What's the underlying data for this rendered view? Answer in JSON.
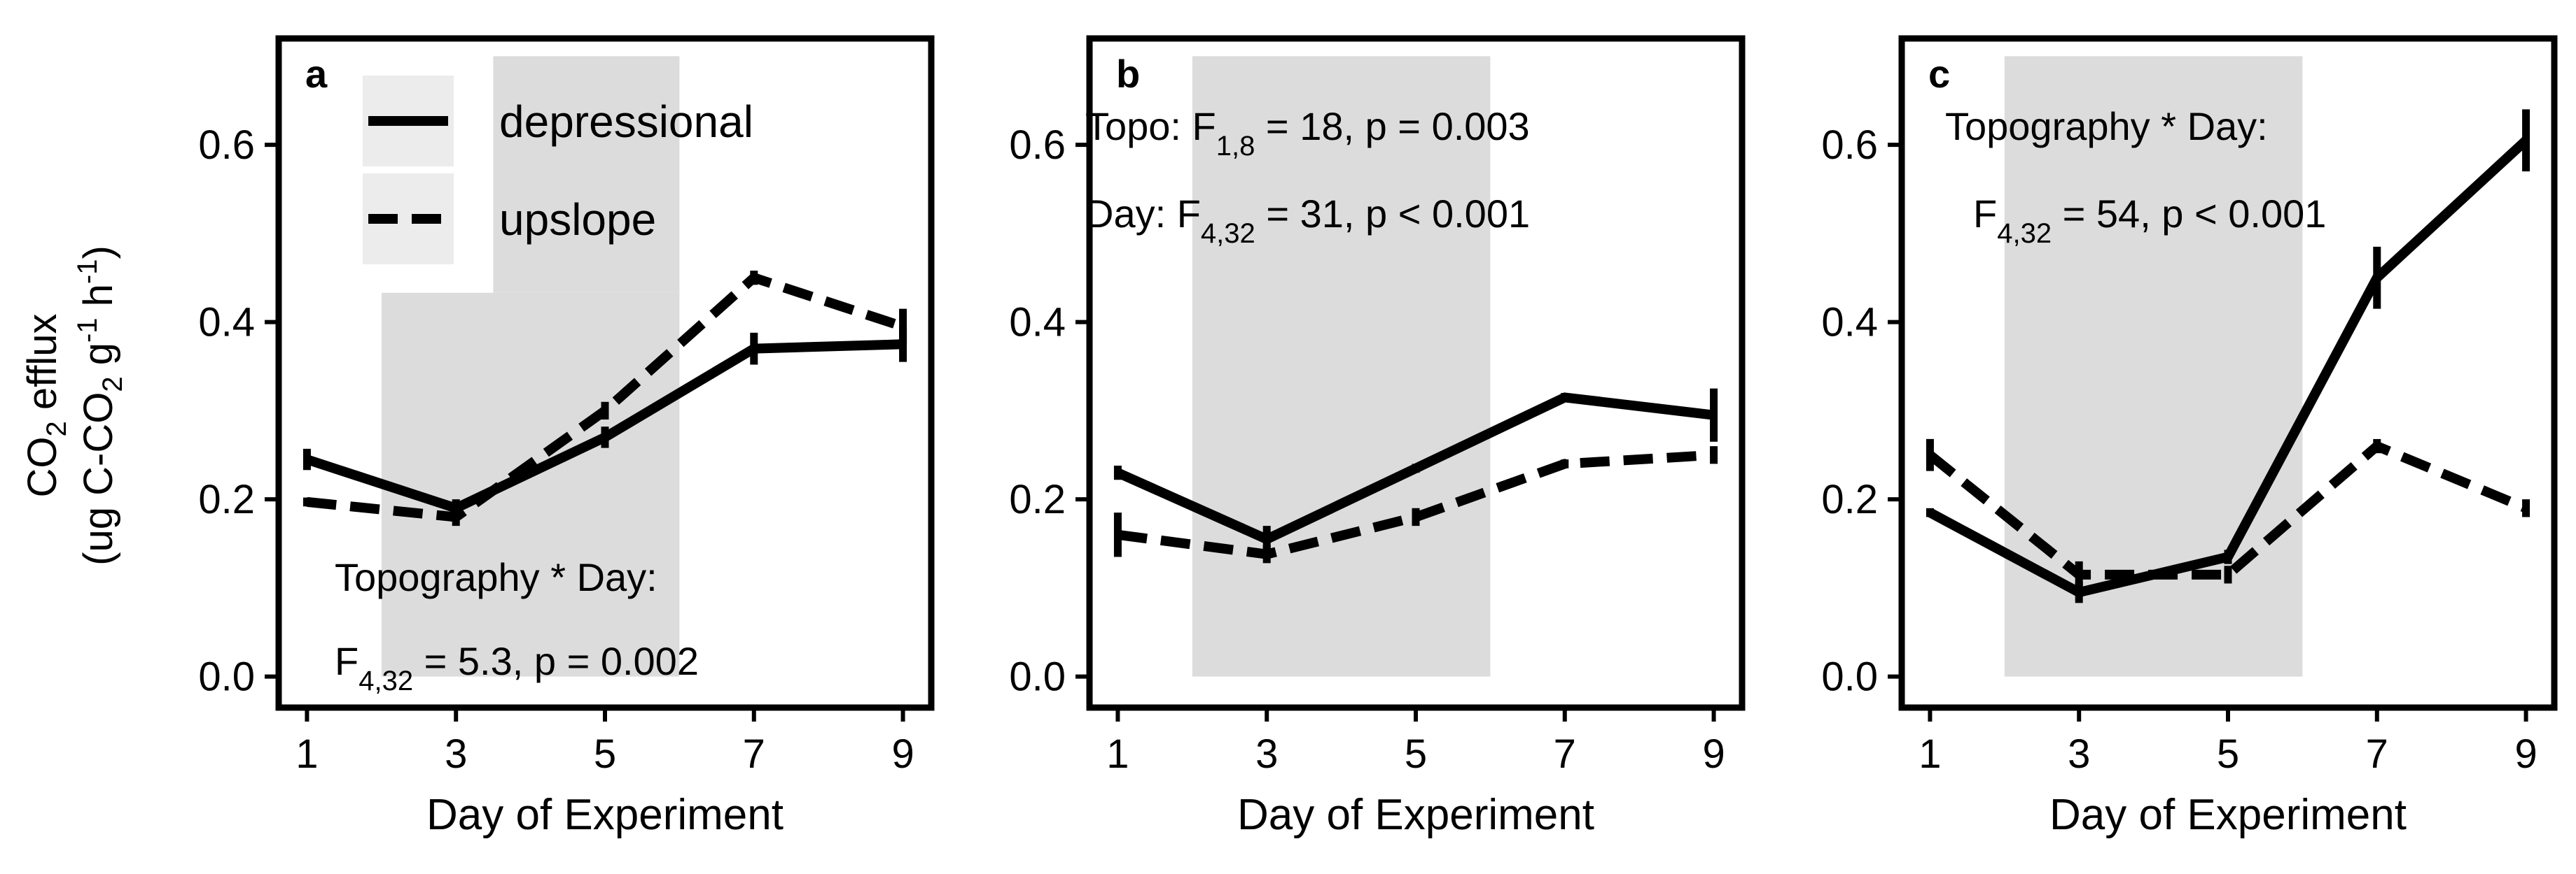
{
  "chart_data": [
    {
      "type": "line",
      "panel": "a",
      "xlabel": "Day of Experiment",
      "ylabel": "CO2 efflux (ug C-CO2 g-1 h-1)",
      "x": [
        1,
        3,
        5,
        7,
        9
      ],
      "xticks": [
        "1",
        "3",
        "5",
        "7",
        "9"
      ],
      "ylim": [
        -0.035,
        0.72
      ],
      "yticks": [
        "0.0",
        "0.2",
        "0.4",
        "0.6"
      ],
      "shaded_days": [
        2,
        6
      ],
      "series": [
        {
          "name": "depressional",
          "style": "solid",
          "values": [
            0.245,
            0.19,
            0.27,
            0.37,
            0.375
          ],
          "errors": [
            0.012,
            0.01,
            0.012,
            0.018,
            0.02
          ]
        },
        {
          "name": "upslope",
          "style": "dashed",
          "values": [
            0.197,
            0.18,
            0.3,
            0.45,
            0.395
          ],
          "errors": [
            0.005,
            0.01,
            0.01,
            0.008,
            0.02
          ]
        }
      ],
      "legend": {
        "title": "",
        "items": [
          {
            "label": "depressional",
            "style": "solid"
          },
          {
            "label": "upslope",
            "style": "dashed"
          }
        ]
      },
      "annotations": [
        {
          "text": "Topography * Day:"
        },
        {
          "text": "F",
          "sub": "4,32",
          "rest": " = 5.3, p = 0.002"
        }
      ]
    },
    {
      "type": "line",
      "panel": "b",
      "xlabel": "Day of Experiment",
      "x": [
        1,
        3,
        5,
        7,
        9
      ],
      "xticks": [
        "1",
        "3",
        "5",
        "7",
        "9"
      ],
      "ylim": [
        -0.035,
        0.72
      ],
      "yticks": [
        "0.0",
        "0.2",
        "0.4",
        "0.6"
      ],
      "shaded_days": [
        2,
        6
      ],
      "series": [
        {
          "name": "depressional",
          "style": "solid",
          "values": [
            0.23,
            0.155,
            0.235,
            0.315,
            0.295
          ],
          "errors": [
            0.008,
            0.015,
            0.005,
            0.005,
            0.03
          ]
        },
        {
          "name": "upslope",
          "style": "dashed",
          "values": [
            0.16,
            0.138,
            0.18,
            0.24,
            0.25
          ],
          "errors": [
            0.025,
            0.01,
            0.01,
            0.005,
            0.01
          ]
        }
      ],
      "annotations": [
        {
          "text": "Topo: F",
          "sub": "1,8",
          "rest": " = 18, p = 0.003"
        },
        {
          "text": "Day: F",
          "sub": "4,32",
          "rest": " = 31, p < 0.001"
        }
      ]
    },
    {
      "type": "line",
      "panel": "c",
      "xlabel": "Day of Experiment",
      "x": [
        1,
        3,
        5,
        7,
        9
      ],
      "xticks": [
        "1",
        "3",
        "5",
        "7",
        "9"
      ],
      "ylim": [
        -0.035,
        0.72
      ],
      "yticks": [
        "0.0",
        "0.2",
        "0.4",
        "0.6"
      ],
      "shaded_days": [
        2,
        6
      ],
      "series": [
        {
          "name": "depressional",
          "style": "solid",
          "values": [
            0.185,
            0.095,
            0.135,
            0.45,
            0.605
          ],
          "errors": [
            0.005,
            0.012,
            0.008,
            0.035,
            0.035
          ]
        },
        {
          "name": "upslope",
          "style": "dashed",
          "values": [
            0.25,
            0.115,
            0.115,
            0.26,
            0.19
          ],
          "errors": [
            0.018,
            0.015,
            0.01,
            0.008,
            0.01
          ]
        }
      ],
      "annotations": [
        {
          "text": "Topography * Day:"
        },
        {
          "text": "F",
          "sub": "4,32",
          "rest": " = 54, p < 0.001"
        }
      ]
    }
  ]
}
